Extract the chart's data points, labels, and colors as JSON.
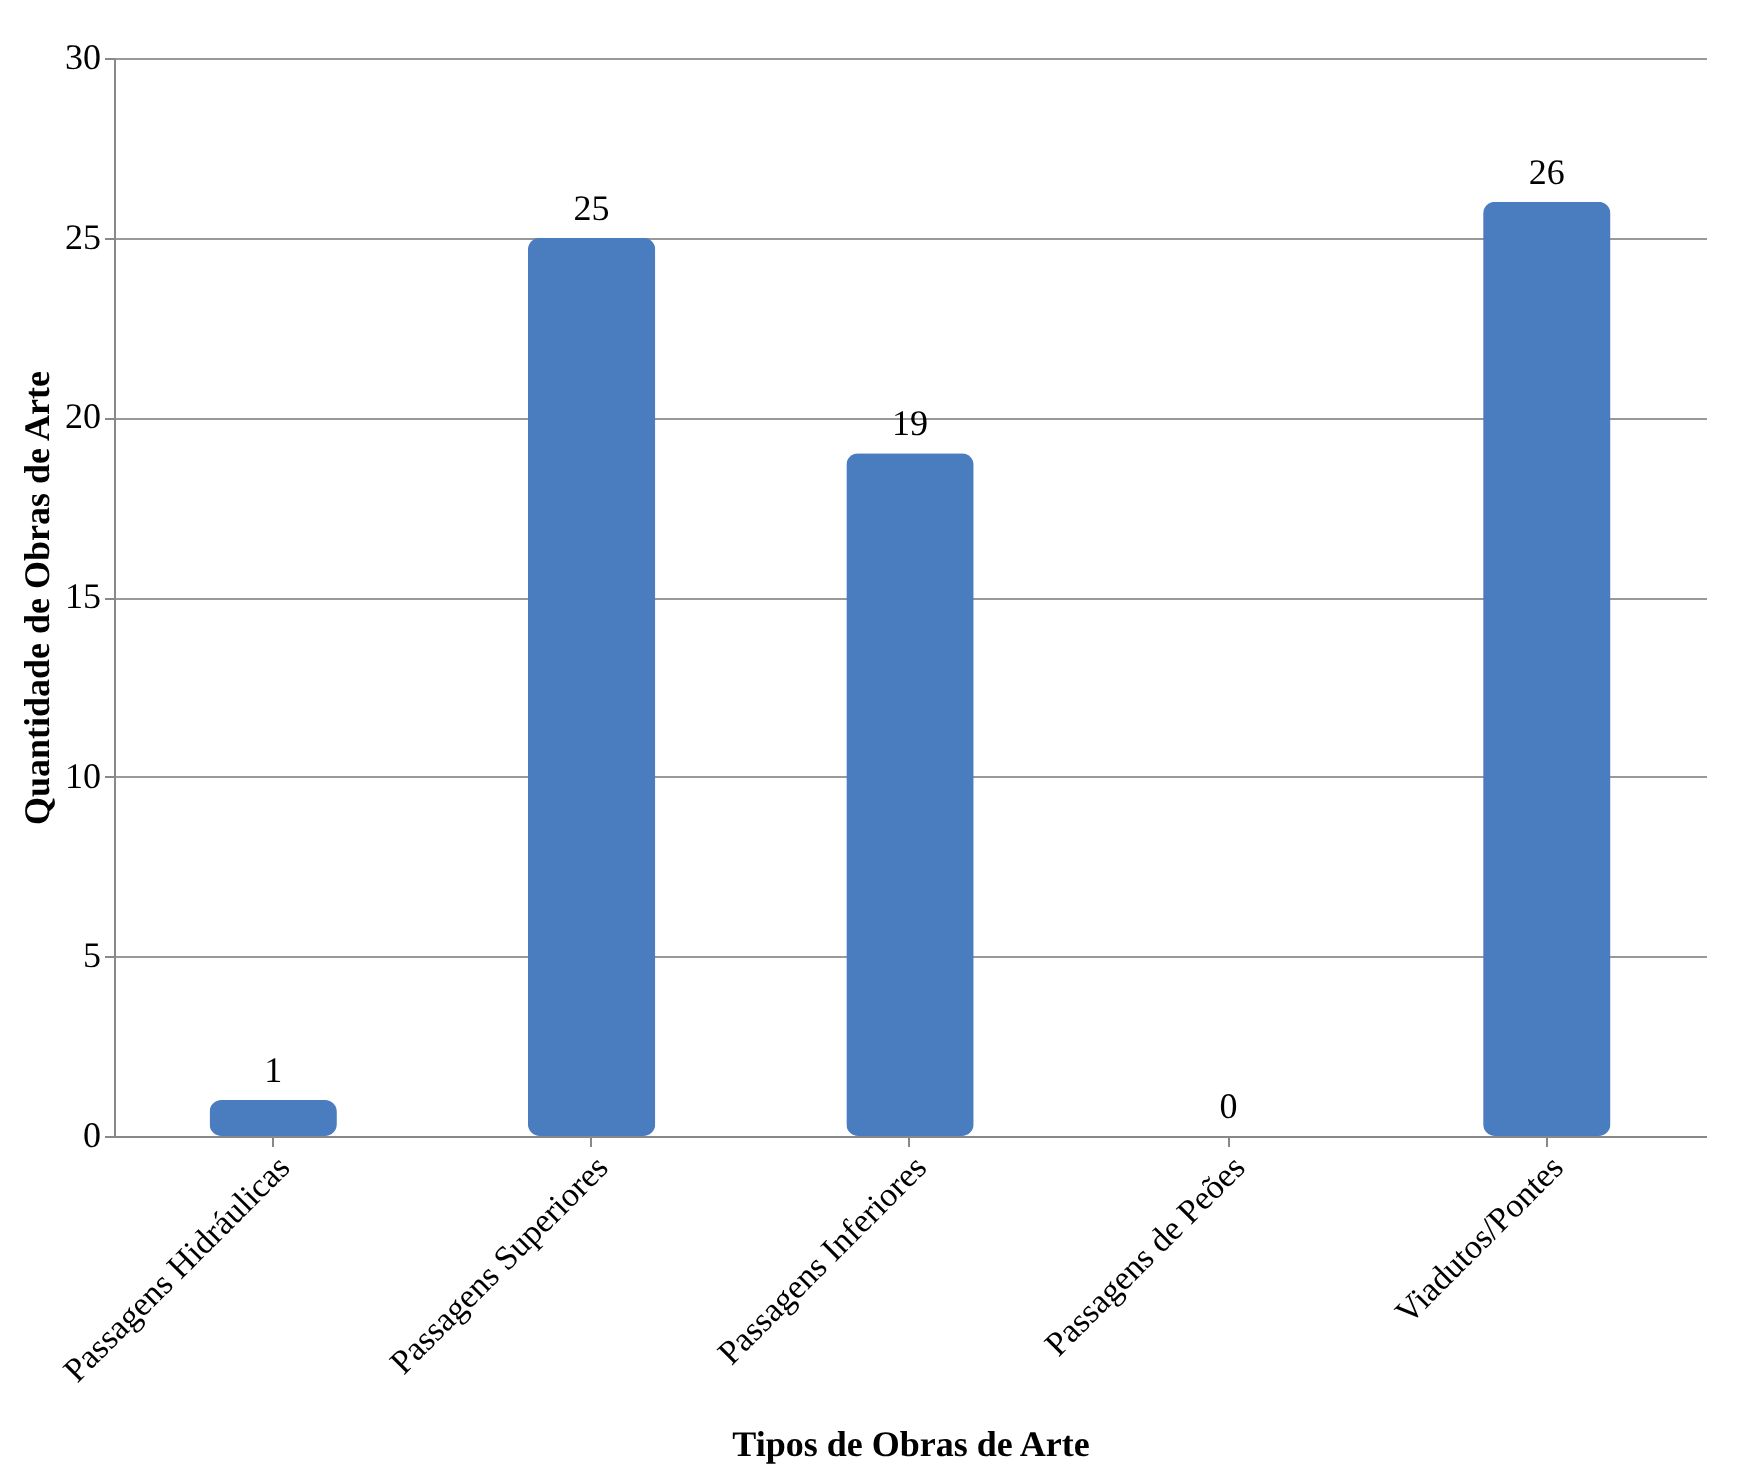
{
  "chart_data": {
    "type": "bar",
    "xlabel": "Tipos de Obras de Arte",
    "ylabel": "Quantidade de Obras de Arte",
    "categories": [
      "Passagens Hidráulicas",
      "Passagens Superiores",
      "Passagens Inferiores",
      "Passagens de Peões",
      "Viadutos/Pontes"
    ],
    "values": [
      1,
      25,
      19,
      0,
      26
    ],
    "color": "#4a7cc0",
    "ylim": [
      0,
      30
    ],
    "yticks": [
      0,
      5,
      10,
      15,
      20,
      25,
      30
    ],
    "grid": "y",
    "data_labels": true
  }
}
